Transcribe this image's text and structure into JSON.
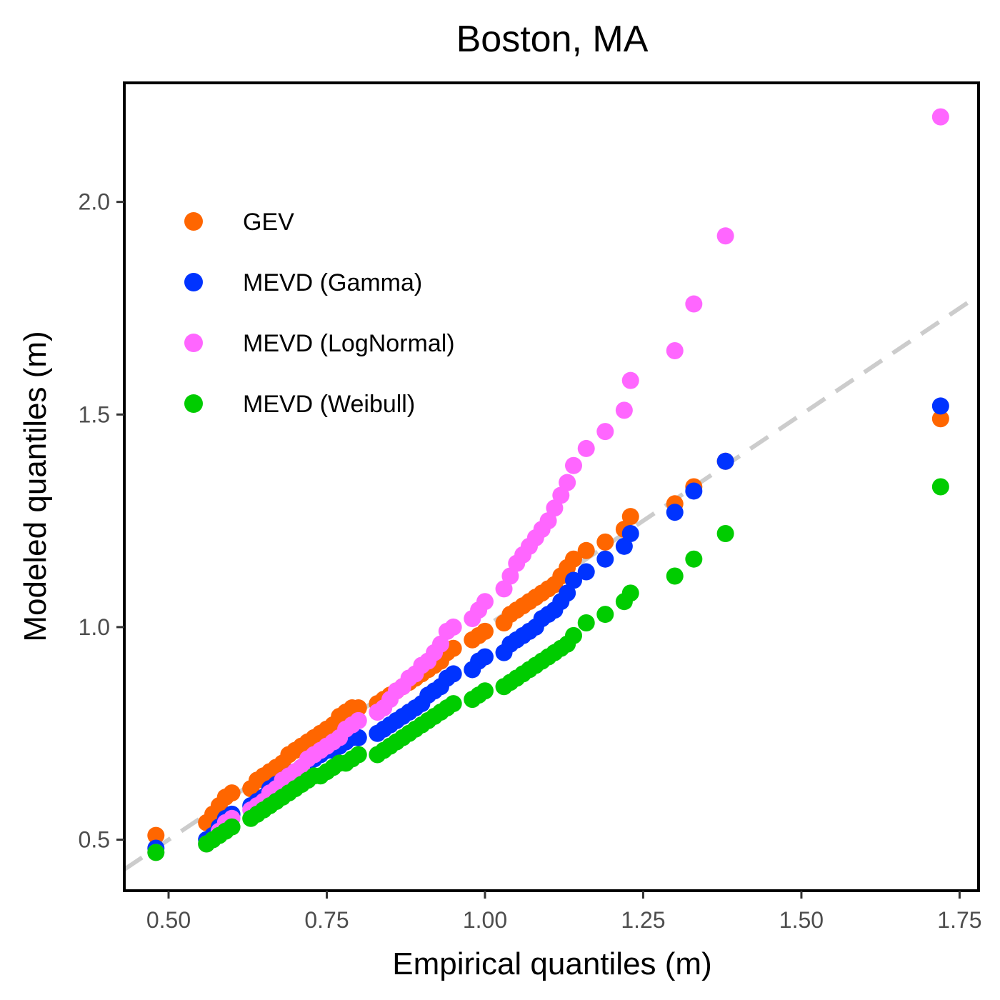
{
  "chart_data": {
    "type": "scatter",
    "title": "Boston, MA",
    "xlabel": "Empirical quantiles (m)",
    "ylabel": "Modeled quantiles (m)",
    "xlim": [
      0.43,
      1.78
    ],
    "ylim": [
      0.38,
      2.28
    ],
    "xticks": [
      0.5,
      0.75,
      1.0,
      1.25,
      1.5,
      1.75
    ],
    "xtick_labels": [
      "0.50",
      "0.75",
      "1.00",
      "1.25",
      "1.50",
      "1.75"
    ],
    "yticks": [
      0.5,
      1.0,
      1.5,
      2.0
    ],
    "ytick_labels": [
      "0.5",
      "1.0",
      "1.5",
      "2.0"
    ],
    "grid": false,
    "legend_position": "top-left",
    "reference_line": {
      "slope": 1,
      "intercept": 0,
      "style": "dashed",
      "color": "#cccccc"
    },
    "x": [
      0.48,
      0.56,
      0.57,
      0.58,
      0.59,
      0.6,
      0.63,
      0.64,
      0.65,
      0.66,
      0.67,
      0.68,
      0.69,
      0.7,
      0.71,
      0.72,
      0.73,
      0.74,
      0.75,
      0.76,
      0.77,
      0.78,
      0.79,
      0.8,
      0.83,
      0.84,
      0.85,
      0.86,
      0.87,
      0.88,
      0.89,
      0.9,
      0.91,
      0.92,
      0.93,
      0.94,
      0.95,
      0.98,
      0.99,
      1.0,
      1.03,
      1.04,
      1.05,
      1.06,
      1.07,
      1.08,
      1.09,
      1.1,
      1.11,
      1.12,
      1.13,
      1.14,
      1.16,
      1.19,
      1.22,
      1.23,
      1.3,
      1.33,
      1.38,
      1.72
    ],
    "series": [
      {
        "name": "GEV",
        "color": "#ff6600",
        "values": [
          0.51,
          0.54,
          0.56,
          0.58,
          0.6,
          0.61,
          0.62,
          0.64,
          0.65,
          0.66,
          0.67,
          0.68,
          0.7,
          0.71,
          0.72,
          0.73,
          0.74,
          0.75,
          0.76,
          0.77,
          0.79,
          0.8,
          0.81,
          0.81,
          0.82,
          0.83,
          0.84,
          0.85,
          0.86,
          0.87,
          0.88,
          0.89,
          0.9,
          0.91,
          0.92,
          0.94,
          0.95,
          0.97,
          0.98,
          0.99,
          1.01,
          1.03,
          1.04,
          1.05,
          1.06,
          1.07,
          1.08,
          1.09,
          1.1,
          1.12,
          1.14,
          1.16,
          1.18,
          1.2,
          1.23,
          1.26,
          1.29,
          1.33,
          1.39,
          1.49
        ]
      },
      {
        "name": "MEVD (Gamma)",
        "color": "#0033ff",
        "values": [
          0.48,
          0.5,
          0.51,
          0.53,
          0.55,
          0.56,
          0.58,
          0.59,
          0.6,
          0.62,
          0.63,
          0.64,
          0.65,
          0.66,
          0.67,
          0.68,
          0.69,
          0.7,
          0.71,
          0.71,
          0.72,
          0.73,
          0.74,
          0.74,
          0.75,
          0.76,
          0.77,
          0.78,
          0.79,
          0.8,
          0.81,
          0.82,
          0.84,
          0.85,
          0.86,
          0.88,
          0.89,
          0.9,
          0.92,
          0.93,
          0.94,
          0.96,
          0.97,
          0.98,
          0.99,
          1.0,
          1.02,
          1.03,
          1.04,
          1.06,
          1.08,
          1.11,
          1.13,
          1.16,
          1.19,
          1.22,
          1.27,
          1.32,
          1.39,
          1.52
        ]
      },
      {
        "name": "MEVD (LogNormal)",
        "color": "#ff66ff",
        "values": [
          0.47,
          0.49,
          0.5,
          0.52,
          0.54,
          0.55,
          0.57,
          0.58,
          0.59,
          0.61,
          0.62,
          0.64,
          0.65,
          0.66,
          0.67,
          0.69,
          0.7,
          0.71,
          0.72,
          0.73,
          0.74,
          0.76,
          0.77,
          0.78,
          0.8,
          0.81,
          0.83,
          0.85,
          0.86,
          0.88,
          0.89,
          0.91,
          0.92,
          0.94,
          0.96,
          0.99,
          1.0,
          1.02,
          1.04,
          1.06,
          1.09,
          1.12,
          1.15,
          1.17,
          1.19,
          1.21,
          1.23,
          1.25,
          1.28,
          1.31,
          1.34,
          1.38,
          1.42,
          1.46,
          1.51,
          1.58,
          1.65,
          1.76,
          1.92,
          2.2
        ]
      },
      {
        "name": "MEVD (Weibull)",
        "color": "#00cc00",
        "values": [
          0.47,
          0.49,
          0.5,
          0.51,
          0.52,
          0.53,
          0.55,
          0.56,
          0.57,
          0.58,
          0.59,
          0.6,
          0.61,
          0.62,
          0.63,
          0.64,
          0.65,
          0.65,
          0.66,
          0.67,
          0.68,
          0.68,
          0.69,
          0.7,
          0.7,
          0.71,
          0.72,
          0.73,
          0.74,
          0.75,
          0.76,
          0.77,
          0.78,
          0.79,
          0.8,
          0.81,
          0.82,
          0.83,
          0.84,
          0.85,
          0.86,
          0.87,
          0.88,
          0.89,
          0.9,
          0.91,
          0.92,
          0.93,
          0.94,
          0.95,
          0.96,
          0.98,
          1.01,
          1.03,
          1.06,
          1.08,
          1.12,
          1.16,
          1.22,
          1.33
        ]
      }
    ]
  }
}
